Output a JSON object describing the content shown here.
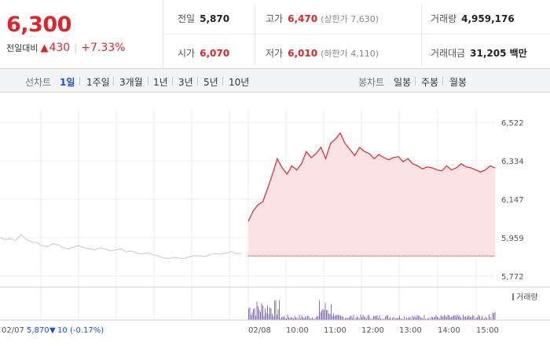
{
  "quote": {
    "price": "6,300",
    "change_label": "전일대비",
    "change_icon": "up-triangle-icon",
    "change_glyph": "▲",
    "change": "430",
    "change_pct": "+7.33%"
  },
  "stats": {
    "prev_close": {
      "label": "전일",
      "value": "5,870"
    },
    "high": {
      "label": "고가",
      "value": "6,470",
      "note": "(상한가 7,630)"
    },
    "volume": {
      "label": "거래량",
      "value": "4,959,176"
    },
    "open": {
      "label": "시가",
      "value": "6,070"
    },
    "low": {
      "label": "저가",
      "value": "6,010",
      "note": "(하한가 4,110)"
    },
    "turnover": {
      "label": "거래대금",
      "value": "31,205 백만"
    }
  },
  "line_tabs": {
    "label": "선차트",
    "items": [
      "1일",
      "1주일",
      "3개월",
      "1년",
      "3년",
      "5년",
      "10년"
    ],
    "active": 0
  },
  "candle_tabs": {
    "label": "봉차트",
    "items": [
      "일봉",
      "주봉",
      "월봉"
    ]
  },
  "chart_data": {
    "type": "line",
    "y_ticks": [
      "6,522",
      "6,334",
      "6,147",
      "5,959",
      "5,772"
    ],
    "ylim": [
      5772,
      6522
    ],
    "x_ticks": [
      "02/08",
      "10:00",
      "11:00",
      "12:00",
      "13:00",
      "14:00",
      "15:00"
    ],
    "prev_day_label": "02/07",
    "prev_day_value": "5,870",
    "prev_day_change_glyph": "▼",
    "prev_day_change": "10",
    "prev_day_change_pct": "(-0.17%)",
    "volume_legend": "거래량",
    "baseline": 5870,
    "colors": {
      "today": "#e0242b",
      "today_fill": "#fbe3e3",
      "prev": "#c8c8c8",
      "volume": "#8a6fb3"
    },
    "prev_series": [
      5960,
      5950,
      5955,
      5945,
      5975,
      5950,
      5940,
      5935,
      5920,
      5915,
      5930,
      5925,
      5910,
      5905,
      5915,
      5920,
      5910,
      5905,
      5900,
      5910,
      5905,
      5895,
      5900,
      5905,
      5890,
      5895,
      5885,
      5880,
      5885,
      5878,
      5870,
      5862,
      5858,
      5864,
      5860,
      5858,
      5866,
      5872,
      5870,
      5868,
      5876,
      5882,
      5879,
      5884,
      5892,
      5880,
      5884
    ],
    "today_series": [
      6040,
      6090,
      6120,
      6135,
      6200,
      6270,
      6345,
      6300,
      6270,
      6310,
      6290,
      6320,
      6380,
      6350,
      6370,
      6400,
      6345,
      6420,
      6440,
      6470,
      6420,
      6390,
      6360,
      6400,
      6380,
      6370,
      6345,
      6365,
      6350,
      6340,
      6350,
      6355,
      6330,
      6345,
      6320,
      6310,
      6295,
      6305,
      6300,
      6290,
      6285,
      6310,
      6290,
      6300,
      6320,
      6305,
      6300,
      6290,
      6280,
      6290,
      6310,
      6300
    ]
  }
}
